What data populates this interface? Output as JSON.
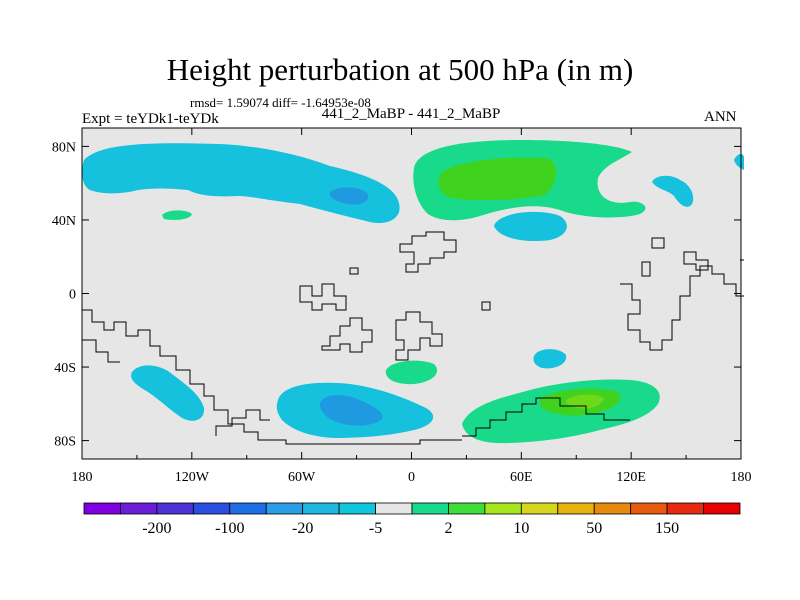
{
  "title": "Height perturbation at 500 hPa (in m)",
  "stats_text": "rmsd= 1.59074 diff= -1.64953e-08",
  "left_label": "Expt = teYDk1-teYDk",
  "center_label": "441_2_MaBP - 441_2_MaBP",
  "right_label": "ANN",
  "lat_ticks": [
    {
      "value": 80,
      "label": "80N"
    },
    {
      "value": 40,
      "label": "40N"
    },
    {
      "value": 0,
      "label": "0"
    },
    {
      "value": -40,
      "label": "40S"
    },
    {
      "value": -80,
      "label": "80S"
    }
  ],
  "lon_ticks": [
    {
      "value": -180,
      "label": "180"
    },
    {
      "value": -120,
      "label": "120W"
    },
    {
      "value": -60,
      "label": "60W"
    },
    {
      "value": 0,
      "label": "0"
    },
    {
      "value": 60,
      "label": "60E"
    },
    {
      "value": 120,
      "label": "120E"
    },
    {
      "value": 180,
      "label": "180"
    }
  ],
  "colorbar": {
    "colors": [
      "#8000e0",
      "#6a1fd6",
      "#4d33d6",
      "#2a4ee0",
      "#1e6ee6",
      "#2a9de6",
      "#1fb6e0",
      "#0fc6dc",
      "#e6e6e6",
      "#19d98a",
      "#3fdc3a",
      "#a6e61e",
      "#d6d61e",
      "#e6b40f",
      "#e68a0f",
      "#e65a0f",
      "#e62a0f",
      "#e60000"
    ],
    "labels": [
      {
        "index": 1,
        "text": "-200"
      },
      {
        "index": 3,
        "text": "-100"
      },
      {
        "index": 5,
        "text": "-20"
      },
      {
        "index": 7,
        "text": "-5"
      },
      {
        "index": 9,
        "text": "2"
      },
      {
        "index": 11,
        "text": "10"
      },
      {
        "index": 13,
        "text": "50"
      },
      {
        "index": 15,
        "text": "150"
      }
    ]
  },
  "map_colors": {
    "background": "#e6e6e6",
    "light_blue": "#15c1dd",
    "mid_blue": "#1f9ae0",
    "light_green": "#19d98a",
    "mid_green": "#3fd31f",
    "lime": "#6fd81a",
    "coast": "#000000"
  }
}
